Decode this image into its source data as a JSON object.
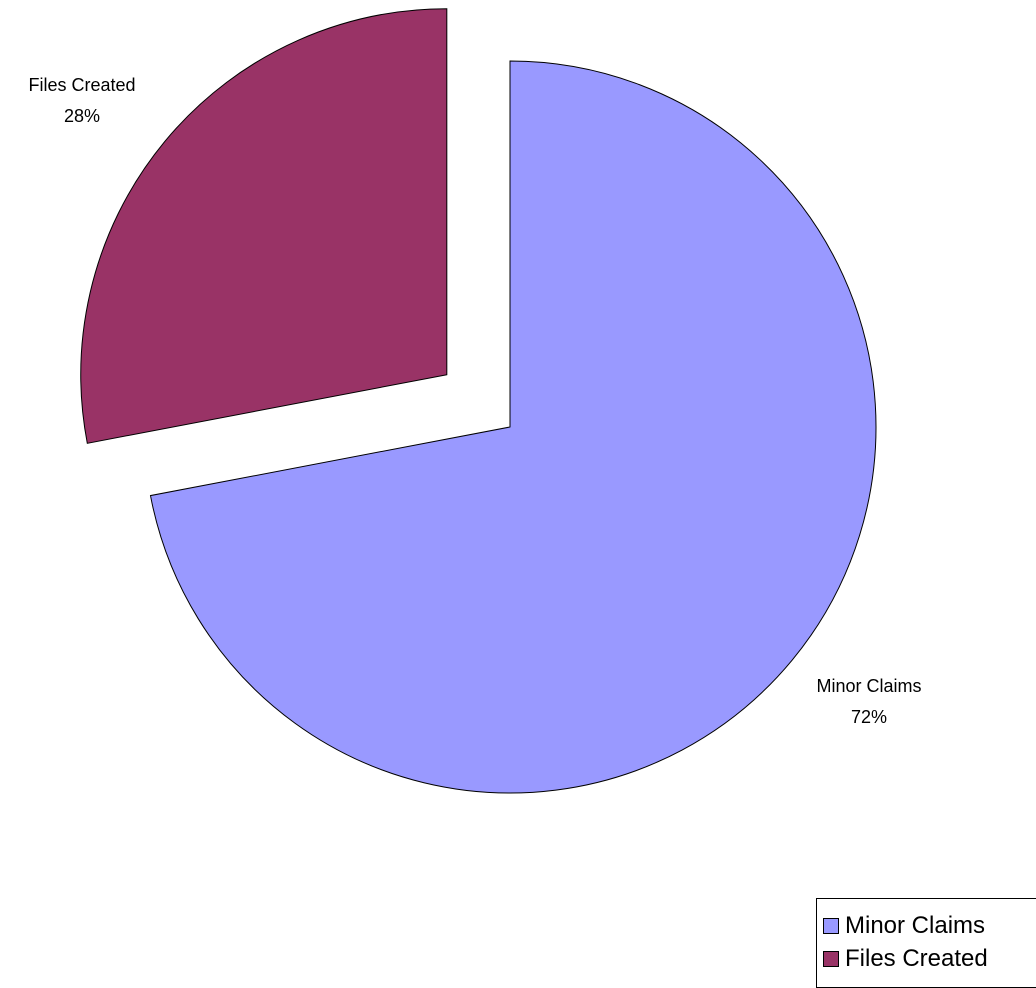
{
  "chart_data": {
    "type": "pie",
    "slices": [
      {
        "label": "Minor Claims",
        "value": 72,
        "percent_label": "72%",
        "color": "#9999FF",
        "exploded": false
      },
      {
        "label": "Files Created",
        "value": 28,
        "percent_label": "28%",
        "color": "#993366",
        "exploded": true
      }
    ],
    "legend": {
      "placement": "bottom-right",
      "entries": [
        "Minor Claims",
        "Files Created"
      ]
    }
  }
}
